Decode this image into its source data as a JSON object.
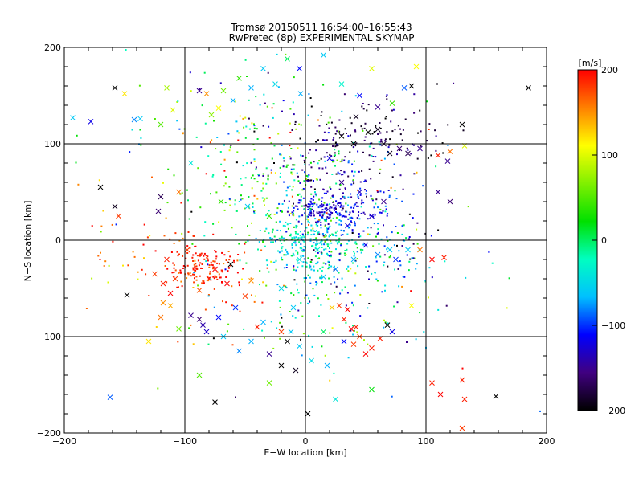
{
  "chart_data": {
    "type": "scatter",
    "title": "Tromsø 20150511 16:54:00–16:55:43",
    "subtitle": "RwPretec (8p) EXPERIMENTAL SKYMAP",
    "xlabel": "E−W location [km]",
    "ylabel": "N−S location [km]",
    "xlim": [
      -200,
      200
    ],
    "ylim": [
      -200,
      200
    ],
    "xticks": [
      "−200",
      "−100",
      "0",
      "100",
      "200"
    ],
    "yticks": [
      "−200",
      "−100",
      "0",
      "100",
      "200"
    ],
    "grid": true,
    "colorbar": {
      "label": "[m/s]",
      "range": [
        -200,
        200
      ],
      "ticks": [
        "−200",
        "−100",
        "0",
        "100",
        "200"
      ],
      "colors": [
        "#000000",
        "#400080",
        "#0000ff",
        "#00c0ff",
        "#00ffc0",
        "#00e000",
        "#80f000",
        "#ffff00",
        "#ff8000",
        "#ff0000"
      ]
    },
    "series": [
      {
        "marker": "x",
        "points": [
          [
            -193,
            127,
            -60
          ],
          [
            -178,
            123,
            -120
          ],
          [
            -158,
            158,
            -200
          ],
          [
            -150,
            152,
            120
          ],
          [
            -142,
            125,
            -80
          ],
          [
            -137,
            126,
            -60
          ],
          [
            -120,
            120,
            50
          ],
          [
            -115,
            158,
            80
          ],
          [
            -110,
            135,
            100
          ],
          [
            -95,
            80,
            -40
          ],
          [
            -88,
            155,
            -150
          ],
          [
            -82,
            152,
            150
          ],
          [
            -78,
            130,
            70
          ],
          [
            -72,
            137,
            110
          ],
          [
            -68,
            155,
            60
          ],
          [
            -60,
            145,
            -70
          ],
          [
            -55,
            168,
            40
          ],
          [
            -45,
            158,
            -70
          ],
          [
            -35,
            178,
            -60
          ],
          [
            -25,
            162,
            -50
          ],
          [
            -15,
            188,
            0
          ],
          [
            -5,
            178,
            -110
          ],
          [
            -4,
            152,
            -70
          ],
          [
            15,
            192,
            -60
          ],
          [
            30,
            162,
            -30
          ],
          [
            45,
            150,
            -110
          ],
          [
            55,
            178,
            100
          ],
          [
            60,
            138,
            -150
          ],
          [
            72,
            142,
            40
          ],
          [
            82,
            158,
            -90
          ],
          [
            92,
            180,
            110
          ],
          [
            88,
            160,
            -200
          ],
          [
            130,
            120,
            -200
          ],
          [
            185,
            158,
            -200
          ],
          [
            -170,
            55,
            -200
          ],
          [
            -158,
            35,
            -190
          ],
          [
            -155,
            25,
            180
          ],
          [
            -122,
            30,
            -160
          ],
          [
            -120,
            45,
            -170
          ],
          [
            -105,
            50,
            160
          ],
          [
            -115,
            -20,
            190
          ],
          [
            -125,
            -35,
            180
          ],
          [
            -118,
            -45,
            190
          ],
          [
            -112,
            -55,
            200
          ],
          [
            -108,
            -40,
            180
          ],
          [
            -98,
            -10,
            180
          ],
          [
            -88,
            -52,
            170
          ],
          [
            -80,
            -40,
            190
          ],
          [
            -75,
            -30,
            200
          ],
          [
            -65,
            -45,
            200
          ],
          [
            -50,
            -58,
            180
          ],
          [
            -45,
            -42,
            150
          ],
          [
            -118,
            -65,
            150
          ],
          [
            -112,
            -68,
            140
          ],
          [
            -120,
            -80,
            160
          ],
          [
            -148,
            -57,
            -200
          ],
          [
            -95,
            -78,
            -150
          ],
          [
            -85,
            -88,
            -140
          ],
          [
            -88,
            -82,
            -160
          ],
          [
            -82,
            -95,
            -130
          ],
          [
            -72,
            -80,
            -110
          ],
          [
            -58,
            -70,
            -100
          ],
          [
            -35,
            -85,
            -70
          ],
          [
            -45,
            -105,
            -70
          ],
          [
            -30,
            -118,
            -150
          ],
          [
            -20,
            -130,
            -200
          ],
          [
            -15,
            -105,
            -200
          ],
          [
            -5,
            -110,
            -60
          ],
          [
            5,
            -125,
            -50
          ],
          [
            15,
            -95,
            0
          ],
          [
            22,
            -70,
            130
          ],
          [
            28,
            -68,
            180
          ],
          [
            35,
            -72,
            200
          ],
          [
            32,
            -82,
            190
          ],
          [
            38,
            -92,
            200
          ],
          [
            42,
            -90,
            190
          ],
          [
            45,
            -100,
            180
          ],
          [
            40,
            -108,
            180
          ],
          [
            50,
            -118,
            200
          ],
          [
            55,
            -112,
            190
          ],
          [
            62,
            -102,
            190
          ],
          [
            68,
            -88,
            -200
          ],
          [
            72,
            -95,
            -120
          ],
          [
            88,
            -68,
            110
          ],
          [
            105,
            -148,
            190
          ],
          [
            112,
            -160,
            200
          ],
          [
            130,
            -145,
            190
          ],
          [
            132,
            -165,
            190
          ],
          [
            130,
            -195,
            180
          ],
          [
            158,
            -162,
            -200
          ],
          [
            -162,
            -163,
            -90
          ],
          [
            -75,
            -168,
            -200
          ],
          [
            2,
            -180,
            -200
          ],
          [
            25,
            -165,
            -40
          ],
          [
            55,
            -155,
            20
          ],
          [
            32,
            -105,
            -110
          ],
          [
            -10,
            -70,
            -60
          ],
          [
            -20,
            -50,
            -50
          ],
          [
            15,
            -38,
            -60
          ],
          [
            25,
            -30,
            -80
          ],
          [
            40,
            -20,
            -70
          ],
          [
            60,
            -15,
            -80
          ],
          [
            70,
            -10,
            -60
          ],
          [
            75,
            -20,
            -100
          ],
          [
            85,
            -10,
            -60
          ],
          [
            95,
            -10,
            160
          ],
          [
            105,
            -20,
            200
          ],
          [
            115,
            -18,
            190
          ],
          [
            110,
            50,
            -150
          ],
          [
            120,
            40,
            -160
          ],
          [
            118,
            82,
            -150
          ],
          [
            110,
            88,
            190
          ],
          [
            120,
            92,
            160
          ],
          [
            132,
            98,
            100
          ],
          [
            -48,
            35,
            -60
          ],
          [
            -70,
            40,
            40
          ],
          [
            -30,
            25,
            40
          ],
          [
            -5,
            -20,
            -40
          ],
          [
            10,
            -10,
            -30
          ],
          [
            50,
            -5,
            -120
          ],
          [
            35,
            15,
            -120
          ],
          [
            55,
            25,
            -130
          ],
          [
            65,
            40,
            -150
          ],
          [
            45,
            50,
            -130
          ],
          [
            30,
            60,
            -150
          ],
          [
            20,
            85,
            -120
          ],
          [
            60,
            115,
            -190
          ],
          [
            65,
            100,
            -180
          ],
          [
            52,
            112,
            -200
          ],
          [
            42,
            128,
            -190
          ],
          [
            70,
            90,
            -190
          ],
          [
            78,
            95,
            -160
          ],
          [
            85,
            90,
            -170
          ],
          [
            95,
            95,
            -150
          ],
          [
            40,
            100,
            -200
          ],
          [
            30,
            108,
            -200
          ],
          [
            -62,
            -25,
            -200
          ],
          [
            -40,
            -90,
            190
          ],
          [
            -20,
            -95,
            180
          ],
          [
            -12,
            -95,
            -60
          ],
          [
            -8,
            -135,
            -190
          ],
          [
            18,
            -130,
            -70
          ],
          [
            -30,
            -148,
            60
          ],
          [
            -88,
            -140,
            50
          ],
          [
            -105,
            -92,
            60
          ],
          [
            -130,
            -105,
            120
          ],
          [
            -68,
            -100,
            -60
          ],
          [
            -55,
            -115,
            -80
          ]
        ]
      },
      {
        "marker": "dot",
        "clusters": [
          {
            "center": [
              -85,
              -25
            ],
            "spread": [
              15,
              12
            ],
            "count": 130,
            "value": 190,
            "jitter": 15
          },
          {
            "center": [
              -120,
              -20
            ],
            "spread": [
              25,
              15
            ],
            "count": 25,
            "value": 180,
            "jitter": 25
          },
          {
            "center": [
              -60,
              -50
            ],
            "spread": [
              20,
              15
            ],
            "count": 25,
            "value": 170,
            "jitter": 30
          },
          {
            "center": [
              0,
              0
            ],
            "spread": [
              18,
              16
            ],
            "count": 200,
            "value": -40,
            "jitter": 25
          },
          {
            "center": [
              15,
              -15
            ],
            "spread": [
              28,
              25
            ],
            "count": 140,
            "value": -30,
            "jitter": 45
          },
          {
            "center": [
              15,
              32
            ],
            "spread": [
              14,
              7
            ],
            "count": 130,
            "value": -120,
            "jitter": 15
          },
          {
            "center": [
              50,
              25
            ],
            "spread": [
              18,
              15
            ],
            "count": 80,
            "value": -115,
            "jitter": 20
          },
          {
            "center": [
              55,
              110
            ],
            "spread": [
              28,
              22
            ],
            "count": 130,
            "value": -175,
            "jitter": 25
          },
          {
            "center": [
              20,
              70
            ],
            "spread": [
              28,
              25
            ],
            "count": 110,
            "value": -130,
            "jitter": 30
          },
          {
            "center": [
              -20,
              55
            ],
            "spread": [
              35,
              30
            ],
            "count": 170,
            "value": 20,
            "jitter": 55
          },
          {
            "center": [
              -60,
              120
            ],
            "spread": [
              45,
              35
            ],
            "count": 90,
            "value": 0,
            "jitter": 110
          },
          {
            "center": [
              0,
              0
            ],
            "spread": [
              70,
              70
            ],
            "count": 200,
            "value": -10,
            "jitter": 110
          },
          {
            "center": [
              15,
              -70
            ],
            "spread": [
              40,
              35
            ],
            "count": 60,
            "value": -20,
            "jitter": 80
          },
          {
            "center": [
              80,
              -20
            ],
            "spread": [
              25,
              25
            ],
            "count": 40,
            "value": -90,
            "jitter": 60
          },
          {
            "center": [
              -150,
              -20
            ],
            "spread": [
              30,
              40
            ],
            "count": 30,
            "value": 150,
            "jitter": 40
          }
        ]
      }
    ]
  }
}
